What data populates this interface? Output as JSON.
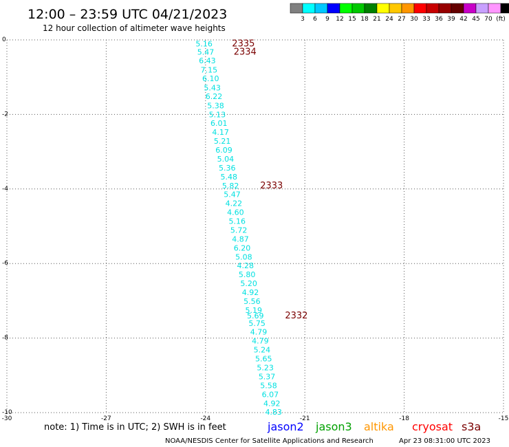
{
  "header": {
    "title": "12:00 – 23:59 UTC 04/21/2023",
    "subtitle": "12 hour collection of altimeter wave heights"
  },
  "colorbar": {
    "colors": [
      "#808080",
      "#00ffff",
      "#00c8ff",
      "#0000ff",
      "#00ff00",
      "#00c800",
      "#008000",
      "#ffff00",
      "#ffc800",
      "#ff9600",
      "#ff0000",
      "#c80000",
      "#960000",
      "#640000",
      "#c800c8",
      "#c8a0ff",
      "#ff96ff",
      "#000000"
    ],
    "labels": [
      "3",
      "6",
      "9",
      "12",
      "15",
      "18",
      "21",
      "24",
      "27",
      "30",
      "33",
      "36",
      "39",
      "42",
      "45",
      "70",
      "(ft)"
    ]
  },
  "chart_data": {
    "type": "scatter",
    "title": "12:00 – 23:59 UTC 04/21/2023",
    "subtitle": "12 hour collection of altimeter wave heights",
    "xlim": [
      -30,
      -15
    ],
    "ylim": [
      -10,
      0
    ],
    "xticks": [
      "-30",
      "-27",
      "-24",
      "-21",
      "-18",
      "-15"
    ],
    "yticks": [
      "0",
      "-2",
      "-4",
      "-6",
      "-8",
      "-10"
    ],
    "grid": true,
    "swh_color": "#00e0e0",
    "pass_color": "#7a0000",
    "points": [
      {
        "x": -24.3,
        "y": -0.1,
        "label": "5.16"
      },
      {
        "x": -24.25,
        "y": -0.32,
        "label": "5.47"
      },
      {
        "x": -24.2,
        "y": -0.55,
        "label": "6.43"
      },
      {
        "x": -24.15,
        "y": -0.8,
        "label": "7.15"
      },
      {
        "x": -24.1,
        "y": -1.03,
        "label": "6.10"
      },
      {
        "x": -24.05,
        "y": -1.28,
        "label": "5.43"
      },
      {
        "x": -24.0,
        "y": -1.51,
        "label": "6.22"
      },
      {
        "x": -23.95,
        "y": -1.76,
        "label": "5.38"
      },
      {
        "x": -23.9,
        "y": -2.0,
        "label": "5.13"
      },
      {
        "x": -23.85,
        "y": -2.23,
        "label": "6.01"
      },
      {
        "x": -23.8,
        "y": -2.47,
        "label": "4.17"
      },
      {
        "x": -23.75,
        "y": -2.71,
        "label": "5.21"
      },
      {
        "x": -23.7,
        "y": -2.95,
        "label": "6.09"
      },
      {
        "x": -23.65,
        "y": -3.19,
        "label": "5.04"
      },
      {
        "x": -23.6,
        "y": -3.43,
        "label": "5.36"
      },
      {
        "x": -23.55,
        "y": -3.67,
        "label": "5.48"
      },
      {
        "x": -23.5,
        "y": -3.91,
        "label": "5.82"
      },
      {
        "x": -23.45,
        "y": -4.14,
        "label": "5.47"
      },
      {
        "x": -23.4,
        "y": -4.38,
        "label": "4.22"
      },
      {
        "x": -23.35,
        "y": -4.62,
        "label": "4.60"
      },
      {
        "x": -23.3,
        "y": -4.86,
        "label": "5.16"
      },
      {
        "x": -23.25,
        "y": -5.1,
        "label": "5.72"
      },
      {
        "x": -23.2,
        "y": -5.34,
        "label": "4.87"
      },
      {
        "x": -23.15,
        "y": -5.58,
        "label": "6.20"
      },
      {
        "x": -23.1,
        "y": -5.82,
        "label": "5.08"
      },
      {
        "x": -23.05,
        "y": -6.05,
        "label": "4.28"
      },
      {
        "x": -23.0,
        "y": -6.29,
        "label": "5.80"
      },
      {
        "x": -22.95,
        "y": -6.53,
        "label": "5.20"
      },
      {
        "x": -22.9,
        "y": -6.77,
        "label": "4.92"
      },
      {
        "x": -22.85,
        "y": -7.01,
        "label": "5.56"
      },
      {
        "x": -22.8,
        "y": -7.25,
        "label": "5.19"
      },
      {
        "x": -22.75,
        "y": -7.4,
        "label": "5.69"
      },
      {
        "x": -22.7,
        "y": -7.6,
        "label": "5.75"
      },
      {
        "x": -22.65,
        "y": -7.83,
        "label": "4.79"
      },
      {
        "x": -22.6,
        "y": -8.07,
        "label": "4.79"
      },
      {
        "x": -22.55,
        "y": -8.31,
        "label": "5.24"
      },
      {
        "x": -22.5,
        "y": -8.55,
        "label": "5.65"
      },
      {
        "x": -22.45,
        "y": -8.79,
        "label": "5.23"
      },
      {
        "x": -22.4,
        "y": -9.03,
        "label": "5.37"
      },
      {
        "x": -22.35,
        "y": -9.27,
        "label": "5.58"
      },
      {
        "x": -22.3,
        "y": -9.51,
        "label": "6.07"
      },
      {
        "x": -22.25,
        "y": -9.75,
        "label": "4.92"
      },
      {
        "x": -22.2,
        "y": -9.98,
        "label": "4.83"
      }
    ],
    "pass_labels": [
      {
        "x": -23.2,
        "y": -0.1,
        "label": "2335"
      },
      {
        "x": -23.15,
        "y": -0.32,
        "label": "2334"
      },
      {
        "x": -22.35,
        "y": -3.91,
        "label": "2333"
      },
      {
        "x": -21.6,
        "y": -7.4,
        "label": "2332"
      }
    ]
  },
  "note": "note: 1) Time is in UTC; 2) SWH is in feet",
  "satellites": [
    {
      "name": "jason2",
      "color": "#0000ff"
    },
    {
      "name": "jason3",
      "color": "#00a000"
    },
    {
      "name": "altika",
      "color": "#ff9600"
    },
    {
      "name": "cryosat",
      "color": "#ff0000"
    },
    {
      "name": "s3a",
      "color": "#7a0000"
    }
  ],
  "footer": {
    "credit": "NOAA/NESDIS Center for Satellite Applications and Research",
    "timestamp": "Apr 23 08:31:00 UTC 2023"
  }
}
